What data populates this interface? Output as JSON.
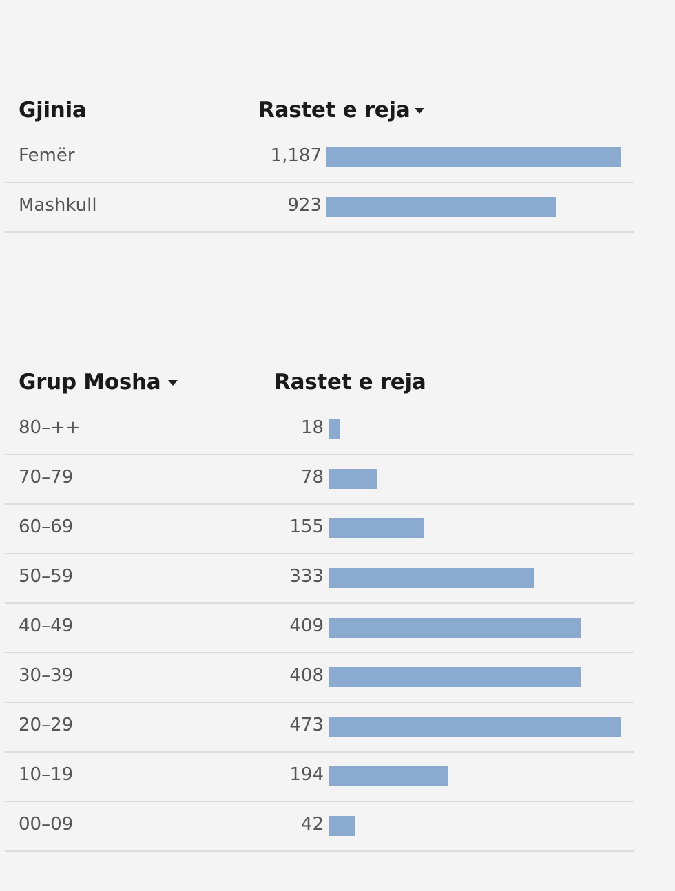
{
  "colors": {
    "bar": "#8aabcf",
    "background": "#f4f4f4",
    "divider": "#dcdcdc"
  },
  "icons": {
    "sort": "sort-desc-icon"
  },
  "chart_data": [
    {
      "type": "bar",
      "orientation": "horizontal",
      "category_header": "Gjinia",
      "value_header": "Rastet e reja",
      "sorted_by": "value",
      "categories": [
        "Femër",
        "Mashkull"
      ],
      "value_labels": [
        "1,187",
        "923"
      ],
      "values": [
        1187,
        923
      ],
      "xlim": [
        0,
        1187
      ]
    },
    {
      "type": "bar",
      "orientation": "horizontal",
      "category_header": "Grup Mosha",
      "value_header": "Rastet e reja",
      "sorted_by": "category",
      "categories": [
        "80–++",
        "70–79",
        "60–69",
        "50–59",
        "40–49",
        "30–39",
        "20–29",
        "10–19",
        "00–09"
      ],
      "value_labels": [
        "18",
        "78",
        "155",
        "333",
        "409",
        "408",
        "473",
        "194",
        "42"
      ],
      "values": [
        18,
        78,
        155,
        333,
        409,
        408,
        473,
        194,
        42
      ],
      "xlim": [
        0,
        473
      ]
    }
  ]
}
